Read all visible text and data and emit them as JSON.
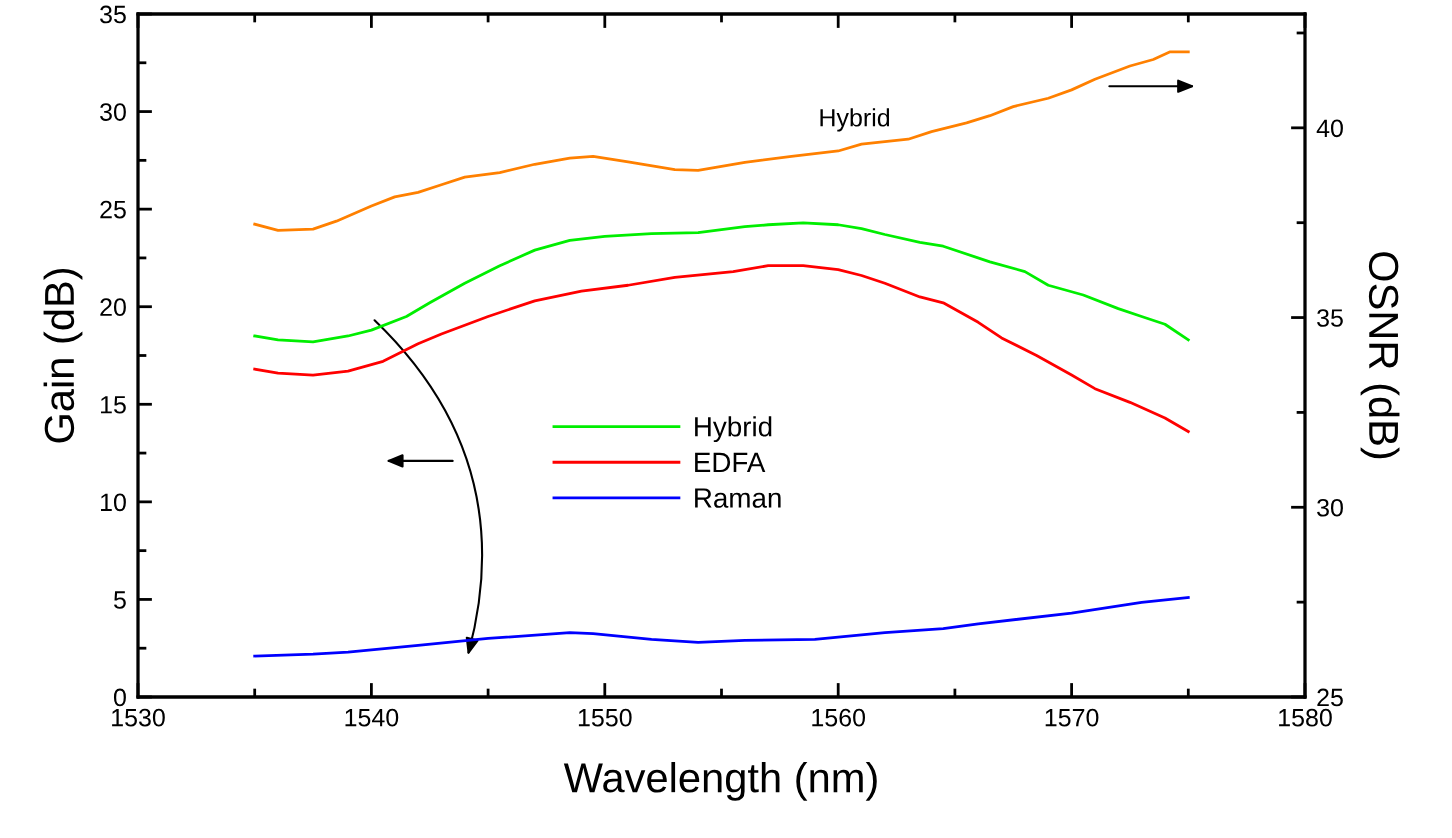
{
  "chart_data": {
    "type": "line",
    "xlabel": "Wavelength (nm)",
    "ylabel": "Gain (dB)",
    "y2label": "OSNR (dB)",
    "xlim": [
      1530,
      1580
    ],
    "xticks": [
      1530,
      1540,
      1550,
      1560,
      1570,
      1580
    ],
    "ylim": [
      0,
      35
    ],
    "yticks": [
      0,
      5,
      10,
      15,
      20,
      25,
      30,
      35
    ],
    "y2lim": [
      25,
      43
    ],
    "y2ticks": [
      25,
      30,
      35,
      40
    ],
    "legend": "center left",
    "grid": false,
    "marker": "none",
    "line_style": "solid",
    "series": [
      {
        "name": "Hybrid",
        "color": "#00ee00",
        "x": [
          1535,
          1536,
          1537.5,
          1539,
          1540,
          1541.5,
          1542.5,
          1544,
          1545.5,
          1547,
          1548.5,
          1550,
          1552,
          1554,
          1556,
          1557,
          1558.5,
          1560,
          1561,
          1562,
          1563.5,
          1564.5,
          1566.5,
          1568,
          1569,
          1570.5,
          1572,
          1573,
          1574,
          1575
        ],
        "values": [
          18.5,
          18.3,
          18.2,
          18.5,
          18.8,
          19.5,
          20.2,
          21.2,
          22.1,
          22.9,
          23.4,
          23.6,
          23.75,
          23.8,
          24.1,
          24.2,
          24.3,
          24.2,
          24.0,
          23.7,
          23.3,
          23.1,
          22.3,
          21.8,
          21.1,
          20.6,
          19.9,
          19.5,
          19.1,
          18.3
        ]
      },
      {
        "name": "EDFA",
        "color": "#ff0000",
        "x": [
          1535,
          1536,
          1537.5,
          1539,
          1540.5,
          1542,
          1543,
          1545,
          1547,
          1549,
          1551,
          1553,
          1555.5,
          1557,
          1558.5,
          1560,
          1561,
          1562,
          1563.5,
          1564.5,
          1566,
          1567,
          1568.5,
          1570,
          1571,
          1572.5,
          1574,
          1575
        ],
        "values": [
          16.8,
          16.6,
          16.5,
          16.7,
          17.2,
          18.1,
          18.6,
          19.5,
          20.3,
          20.8,
          21.1,
          21.5,
          21.8,
          22.1,
          22.1,
          21.9,
          21.6,
          21.2,
          20.5,
          20.2,
          19.2,
          18.4,
          17.5,
          16.5,
          15.8,
          15.1,
          14.3,
          13.6
        ]
      },
      {
        "name": "Raman",
        "color": "#0000ff",
        "x": [
          1535,
          1537.5,
          1539,
          1542,
          1545,
          1548.5,
          1549.5,
          1552,
          1554,
          1556,
          1559,
          1562,
          1564.5,
          1566,
          1570,
          1573,
          1575
        ],
        "values": [
          2.1,
          2.2,
          2.3,
          2.65,
          3.0,
          3.3,
          3.25,
          2.95,
          2.8,
          2.9,
          2.95,
          3.3,
          3.5,
          3.75,
          4.3,
          4.85,
          5.1
        ]
      },
      {
        "name": "Hybrid",
        "axis": "y2",
        "color": "#ff8000",
        "x": [
          1535,
          1536,
          1537.5,
          1538.5,
          1540,
          1541,
          1542,
          1543,
          1544,
          1545.5,
          1547,
          1548.5,
          1549.5,
          1551,
          1553,
          1554,
          1556,
          1558,
          1560,
          1561,
          1563,
          1564,
          1565.5,
          1566.5,
          1567.5,
          1569,
          1570,
          1571,
          1572.5,
          1573.5,
          1574.2,
          1575
        ],
        "values": [
          37.46,
          37.3,
          37.33,
          37.54,
          37.94,
          38.18,
          38.3,
          38.5,
          38.7,
          38.82,
          39.04,
          39.2,
          39.25,
          39.1,
          38.9,
          38.88,
          39.09,
          39.25,
          39.39,
          39.57,
          39.7,
          39.9,
          40.13,
          40.32,
          40.56,
          40.78,
          41.0,
          41.28,
          41.63,
          41.8,
          42.0,
          42.0
        ]
      }
    ]
  }
}
